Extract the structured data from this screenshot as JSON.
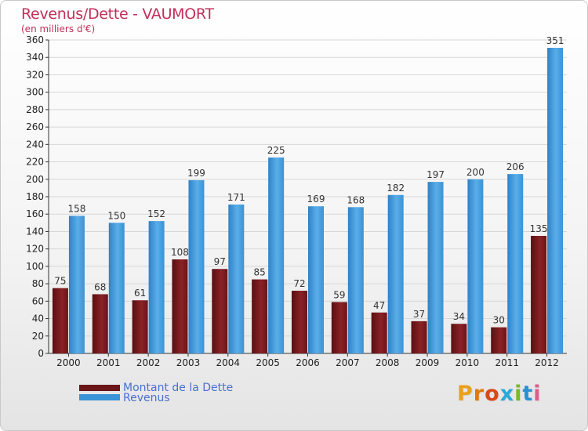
{
  "title": "Revenus/Dette - VAUMORT",
  "subtitle": "(en milliers d'€)",
  "legend": {
    "debt_label": "Montant de la Dette",
    "revenue_label": "Revenus"
  },
  "logo_text": "Proxiti",
  "colors": {
    "title": "#c0305a",
    "debt": "#7a1c1f",
    "revenue": "#3b93d8",
    "legend_text": "#4a6fd0",
    "grid": "#d7d7d7"
  },
  "chart_data": {
    "type": "bar",
    "title": "Revenus/Dette - VAUMORT",
    "ylabel": "(en milliers d'€)",
    "xlabel": "",
    "ylim": [
      0,
      360
    ],
    "y_ticks": [
      0,
      20,
      40,
      60,
      80,
      100,
      120,
      140,
      160,
      180,
      200,
      220,
      240,
      260,
      280,
      300,
      320,
      340,
      360
    ],
    "grid": true,
    "legend_position": "bottom-left",
    "categories": [
      "2000",
      "2001",
      "2002",
      "2003",
      "2004",
      "2005",
      "2006",
      "2007",
      "2008",
      "2009",
      "2010",
      "2011",
      "2012"
    ],
    "series": [
      {
        "name": "Montant de la Dette",
        "values": [
          75,
          68,
          61,
          108,
          97,
          85,
          72,
          59,
          47,
          37,
          34,
          30,
          135
        ]
      },
      {
        "name": "Revenus",
        "values": [
          158,
          150,
          152,
          199,
          171,
          225,
          169,
          168,
          182,
          197,
          200,
          206,
          351
        ]
      }
    ]
  }
}
